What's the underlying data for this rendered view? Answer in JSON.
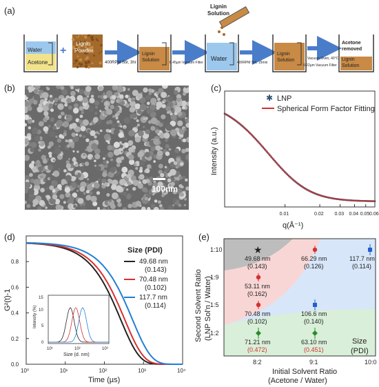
{
  "panel_labels": {
    "a": "(a)",
    "b": "(b)",
    "c": "(c)",
    "d": "(d)",
    "e": "(e)"
  },
  "schematic": {
    "beaker1_top": "Water",
    "beaker1_bottom": "Acetone",
    "plus": "+",
    "powder_label": "Lignin Powder",
    "step1": "400RPM Stir, 3hr",
    "beaker2": "Lignin Solution",
    "step2": "0.45µm Vacuum Filter",
    "beaker3": "Water",
    "dropper_label": "Lignin Solution",
    "step3": "400RPM Stir, 15min",
    "beaker4": "Lignin Solution",
    "step4a": "Vacuum Oven, 40°C",
    "step4b": "0.22µm Vacuum Filter",
    "beaker5_top": "Acetone removed",
    "beaker5_bottom": "Lignin Solution"
  },
  "sem": {
    "scale_label": "100nm"
  },
  "colors": {
    "red": "#d62f2f",
    "blue": "#1f5fd0",
    "green": "#2a8a2a",
    "black": "#222222",
    "pink": "#f9d6d6",
    "lightblue": "#d7e6f8",
    "lightgreen": "#d9efd9",
    "gray": "#bdbdbd",
    "beaker_blue": "#9cc8ee",
    "beaker_yellow": "#f1e38c",
    "beaker_brown": "#c88a45"
  },
  "chart_data": [
    {
      "panel": "c",
      "type": "scatter",
      "xlabel": "q(Å⁻¹)",
      "ylabel": "Intensity (a.u.)",
      "xscale": "log",
      "xticks": [
        "0.01",
        "0.02",
        "0.03",
        "0.04",
        "0.05",
        "0.06"
      ],
      "legend": [
        "LNP",
        "Spherical Form Factor Fitting"
      ],
      "legend_position": "top-right",
      "series": [
        {
          "name": "LNP",
          "color": "#2f4f6f"
        },
        {
          "name": "Spherical Form Factor Fitting",
          "color": "#d62f2f"
        }
      ]
    },
    {
      "panel": "d",
      "type": "line",
      "xlabel": "Time (µs)",
      "ylabel": "G²(t)-1",
      "xscale": "log",
      "xlim": [
        1,
        10000
      ],
      "ylim": [
        0,
        1
      ],
      "yticks": [
        "0.0",
        "0.2",
        "0.4",
        "0.6",
        "0.8"
      ],
      "xticks": [
        "10⁰",
        "10¹",
        "10²",
        "10³",
        "10⁴"
      ],
      "legend_title": "Size (PDI)",
      "series": [
        {
          "name": "49.68 nm",
          "pdi": "(0.143)",
          "color": "#222222",
          "tau": 260
        },
        {
          "name": "70.48 nm",
          "pdi": "(0.102)",
          "color": "#d62f2f",
          "tau": 330
        },
        {
          "name": "117.7 nm",
          "pdi": "(0.114)",
          "color": "#1f7fd6",
          "tau": 520
        }
      ],
      "inset": {
        "xlabel": "Size (d. nm)",
        "ylabel": "Intensity (%)",
        "yticks": [
          "0",
          "5",
          "10",
          "15"
        ],
        "xticks": [
          "10¹",
          "10²",
          "10³"
        ]
      }
    },
    {
      "panel": "e",
      "type": "scatter",
      "xlabel_line1": "Initial Solvent Ratio",
      "xlabel_line2": "(Acetone / Water)",
      "ylabel_line1": "Second Solvent Ratio",
      "ylabel_line2": "(LNP Sol'n / Water)",
      "categories_x": [
        "8:2",
        "9:1",
        "10:0"
      ],
      "categories_y": [
        "1:10",
        "1:9",
        "1:5",
        "1:2"
      ],
      "legend_line1": "Size",
      "legend_line2": "(PDI)",
      "points": [
        {
          "x": "8:2",
          "y": "1:10",
          "size": "49.68 nm",
          "pdi": "(0.143)",
          "marker": "star",
          "color": "#222222"
        },
        {
          "x": "8:2",
          "y": "1:9",
          "size": "53.11 nm",
          "pdi": "(0.162)",
          "marker": "circle",
          "color": "#d62f2f"
        },
        {
          "x": "8:2",
          "y": "1:5",
          "size": "70.48 nm",
          "pdi": "(0.102)",
          "marker": "circle",
          "color": "#d62f2f"
        },
        {
          "x": "8:2",
          "y": "1:2",
          "size": "71.21 nm",
          "pdi": "(0.472)",
          "marker": "diamond",
          "color": "#2a8a2a"
        },
        {
          "x": "9:1",
          "y": "1:10",
          "size": "66.29 nm",
          "pdi": "(0.126)",
          "marker": "circle",
          "color": "#d62f2f"
        },
        {
          "x": "9:1",
          "y": "1:5",
          "size": "106.6 nm",
          "pdi": "(0.140)",
          "marker": "square",
          "color": "#1f5fd0"
        },
        {
          "x": "9:1",
          "y": "1:2",
          "size": "63.10 nm",
          "pdi": "(0.451)",
          "marker": "diamond",
          "color": "#2a8a2a"
        },
        {
          "x": "10:0",
          "y": "1:10",
          "size": "117.7 nm",
          "pdi": "(0.114)",
          "marker": "square",
          "color": "#1f5fd0"
        }
      ]
    }
  ]
}
